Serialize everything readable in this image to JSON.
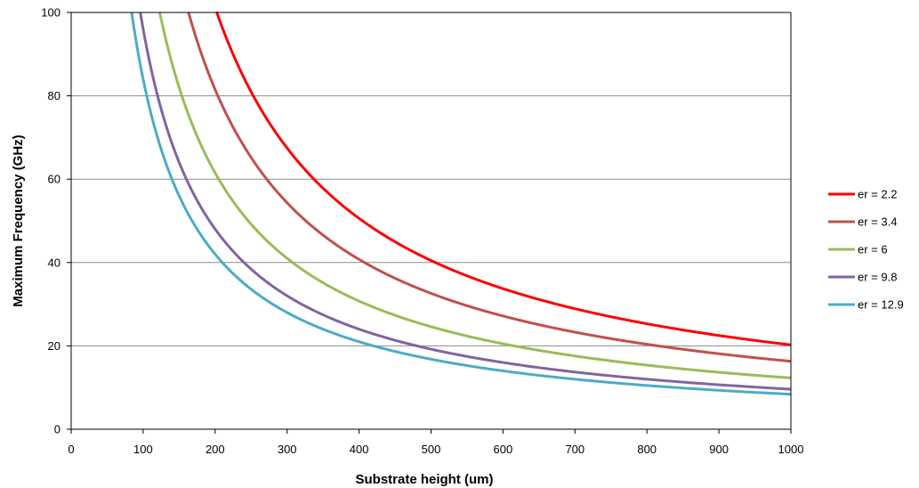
{
  "chart_data": {
    "type": "line",
    "title": "",
    "xlabel": "Substrate height (um)",
    "ylabel": "Maximum Frequency (GHz)",
    "xlim": [
      0,
      1000
    ],
    "ylim": [
      0,
      100
    ],
    "x_ticks": [
      0,
      100,
      200,
      300,
      400,
      500,
      600,
      700,
      800,
      900,
      1000
    ],
    "y_ticks": [
      0,
      20,
      40,
      60,
      80,
      100
    ],
    "grid": "horizontal",
    "legend_position": "right",
    "series": [
      {
        "name": "er = 2.2",
        "color": "#ff0000",
        "x": [
          202,
          250,
          300,
          350,
          400,
          450,
          500,
          600,
          700,
          800,
          900,
          1000
        ],
        "y": [
          100,
          81,
          67.5,
          58,
          50.5,
          45,
          40.5,
          33.8,
          29,
          25.3,
          22.5,
          20.3
        ]
      },
      {
        "name": "er = 3.4",
        "color": "#c0504d",
        "x": [
          163,
          200,
          250,
          300,
          350,
          400,
          500,
          600,
          700,
          800,
          900,
          1000
        ],
        "y": [
          100,
          81.5,
          65.2,
          54.3,
          46.6,
          40.8,
          32.6,
          27.2,
          23.3,
          20.4,
          18.1,
          16.3
        ]
      },
      {
        "name": "er = 6",
        "color": "#9bbb59",
        "x": [
          123,
          150,
          200,
          250,
          300,
          400,
          500,
          600,
          700,
          800,
          900,
          1000
        ],
        "y": [
          100,
          82,
          61.5,
          49.2,
          41,
          30.8,
          24.6,
          20.5,
          17.6,
          15.4,
          13.7,
          12.3
        ]
      },
      {
        "name": "er = 9.8",
        "color": "#8064a2",
        "x": [
          96,
          125,
          150,
          200,
          250,
          300,
          400,
          500,
          600,
          700,
          800,
          900,
          1000
        ],
        "y": [
          100,
          77,
          64,
          48,
          38.4,
          32,
          24,
          19.2,
          16,
          13.7,
          12,
          10.7,
          9.6
        ]
      },
      {
        "name": "er = 12.9",
        "color": "#4bacc6",
        "x": [
          84,
          100,
          125,
          150,
          200,
          250,
          300,
          400,
          500,
          600,
          700,
          800,
          900,
          1000
        ],
        "y": [
          100,
          84,
          67.2,
          56,
          42,
          33.6,
          28,
          21,
          16.8,
          14,
          12,
          10.5,
          9.3,
          8.4
        ]
      }
    ]
  }
}
